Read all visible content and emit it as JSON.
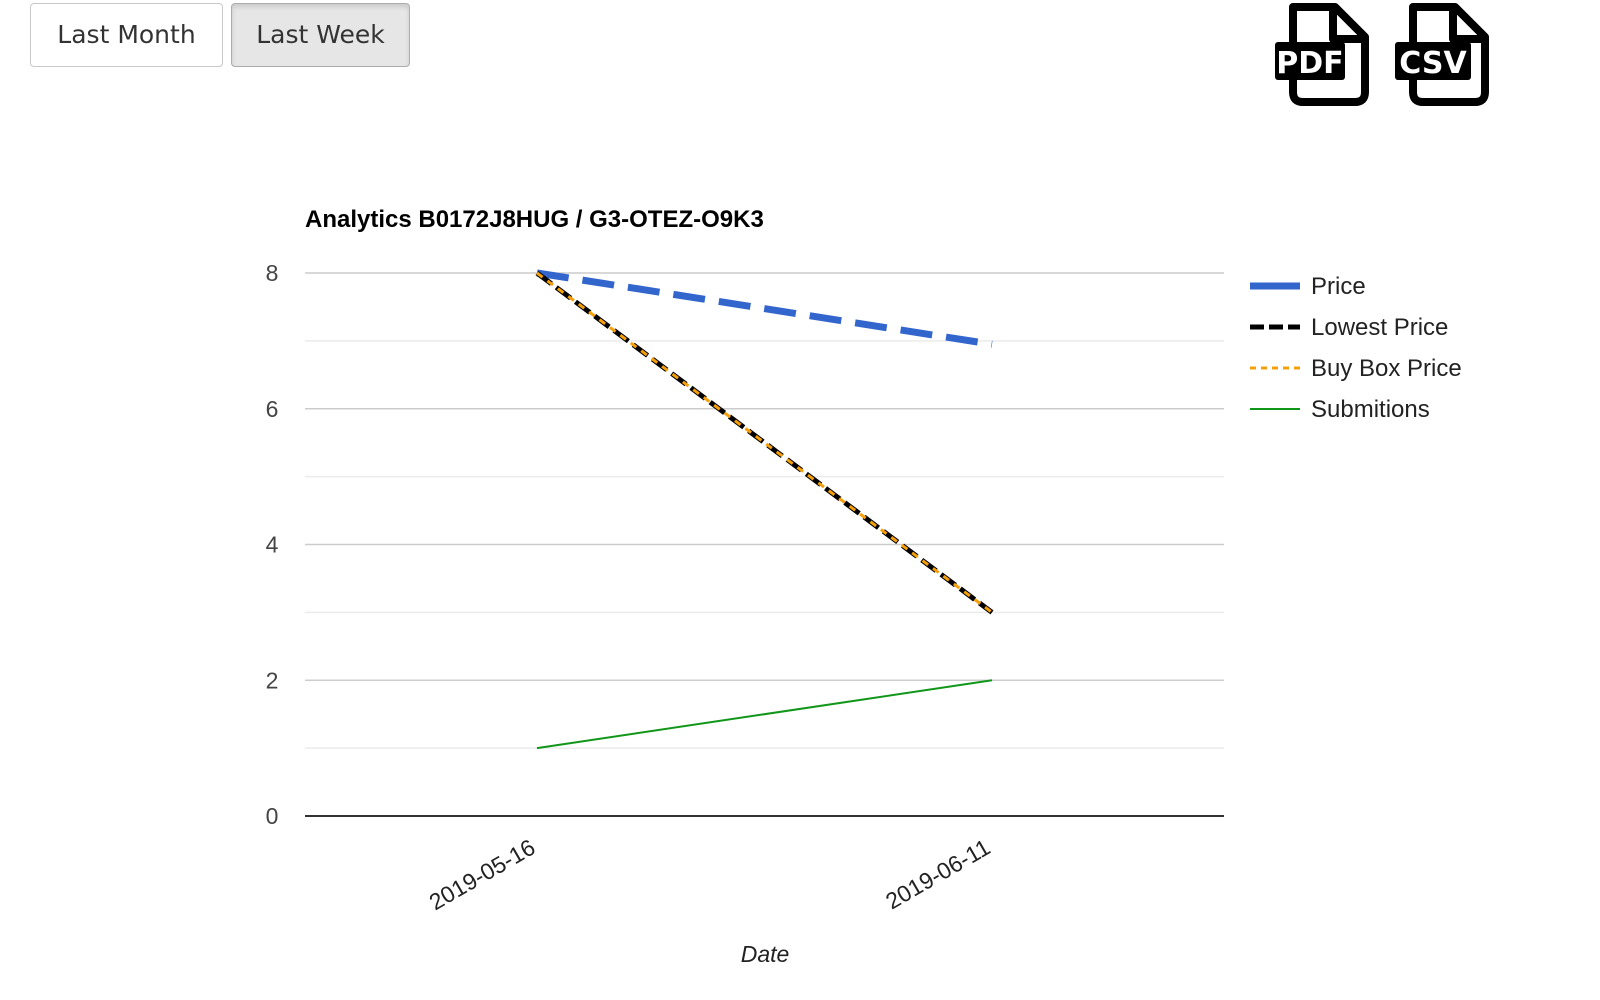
{
  "toolbar": {
    "buttons": [
      {
        "label": "Last Month",
        "active": false
      },
      {
        "label": "Last Week",
        "active": true
      }
    ],
    "exports": [
      {
        "label": "PDF",
        "icon": "pdf-file-icon"
      },
      {
        "label": "CSV",
        "icon": "csv-file-icon"
      }
    ]
  },
  "chart_data": {
    "type": "line",
    "title": "Analytics B0172J8HUG / G3-OTEZ-O9K3",
    "xlabel": "Date",
    "ylabel": "",
    "categories": [
      "2019-05-16",
      "2019-06-11"
    ],
    "ylim": [
      0,
      8
    ],
    "yticks": [
      0,
      2,
      4,
      6,
      8
    ],
    "grid": true,
    "legend_position": "right",
    "series": [
      {
        "name": "Price",
        "values": [
          8,
          6.95
        ],
        "color": "#3366cc",
        "style": "dashed-thick"
      },
      {
        "name": "Lowest Price",
        "values": [
          8,
          3
        ],
        "color": "#000000",
        "style": "dashed"
      },
      {
        "name": "Buy Box Price",
        "values": [
          8,
          3
        ],
        "color": "#f5a00a",
        "style": "dotted"
      },
      {
        "name": "Submitions",
        "values": [
          1,
          2
        ],
        "color": "#109618",
        "style": "solid"
      }
    ]
  }
}
